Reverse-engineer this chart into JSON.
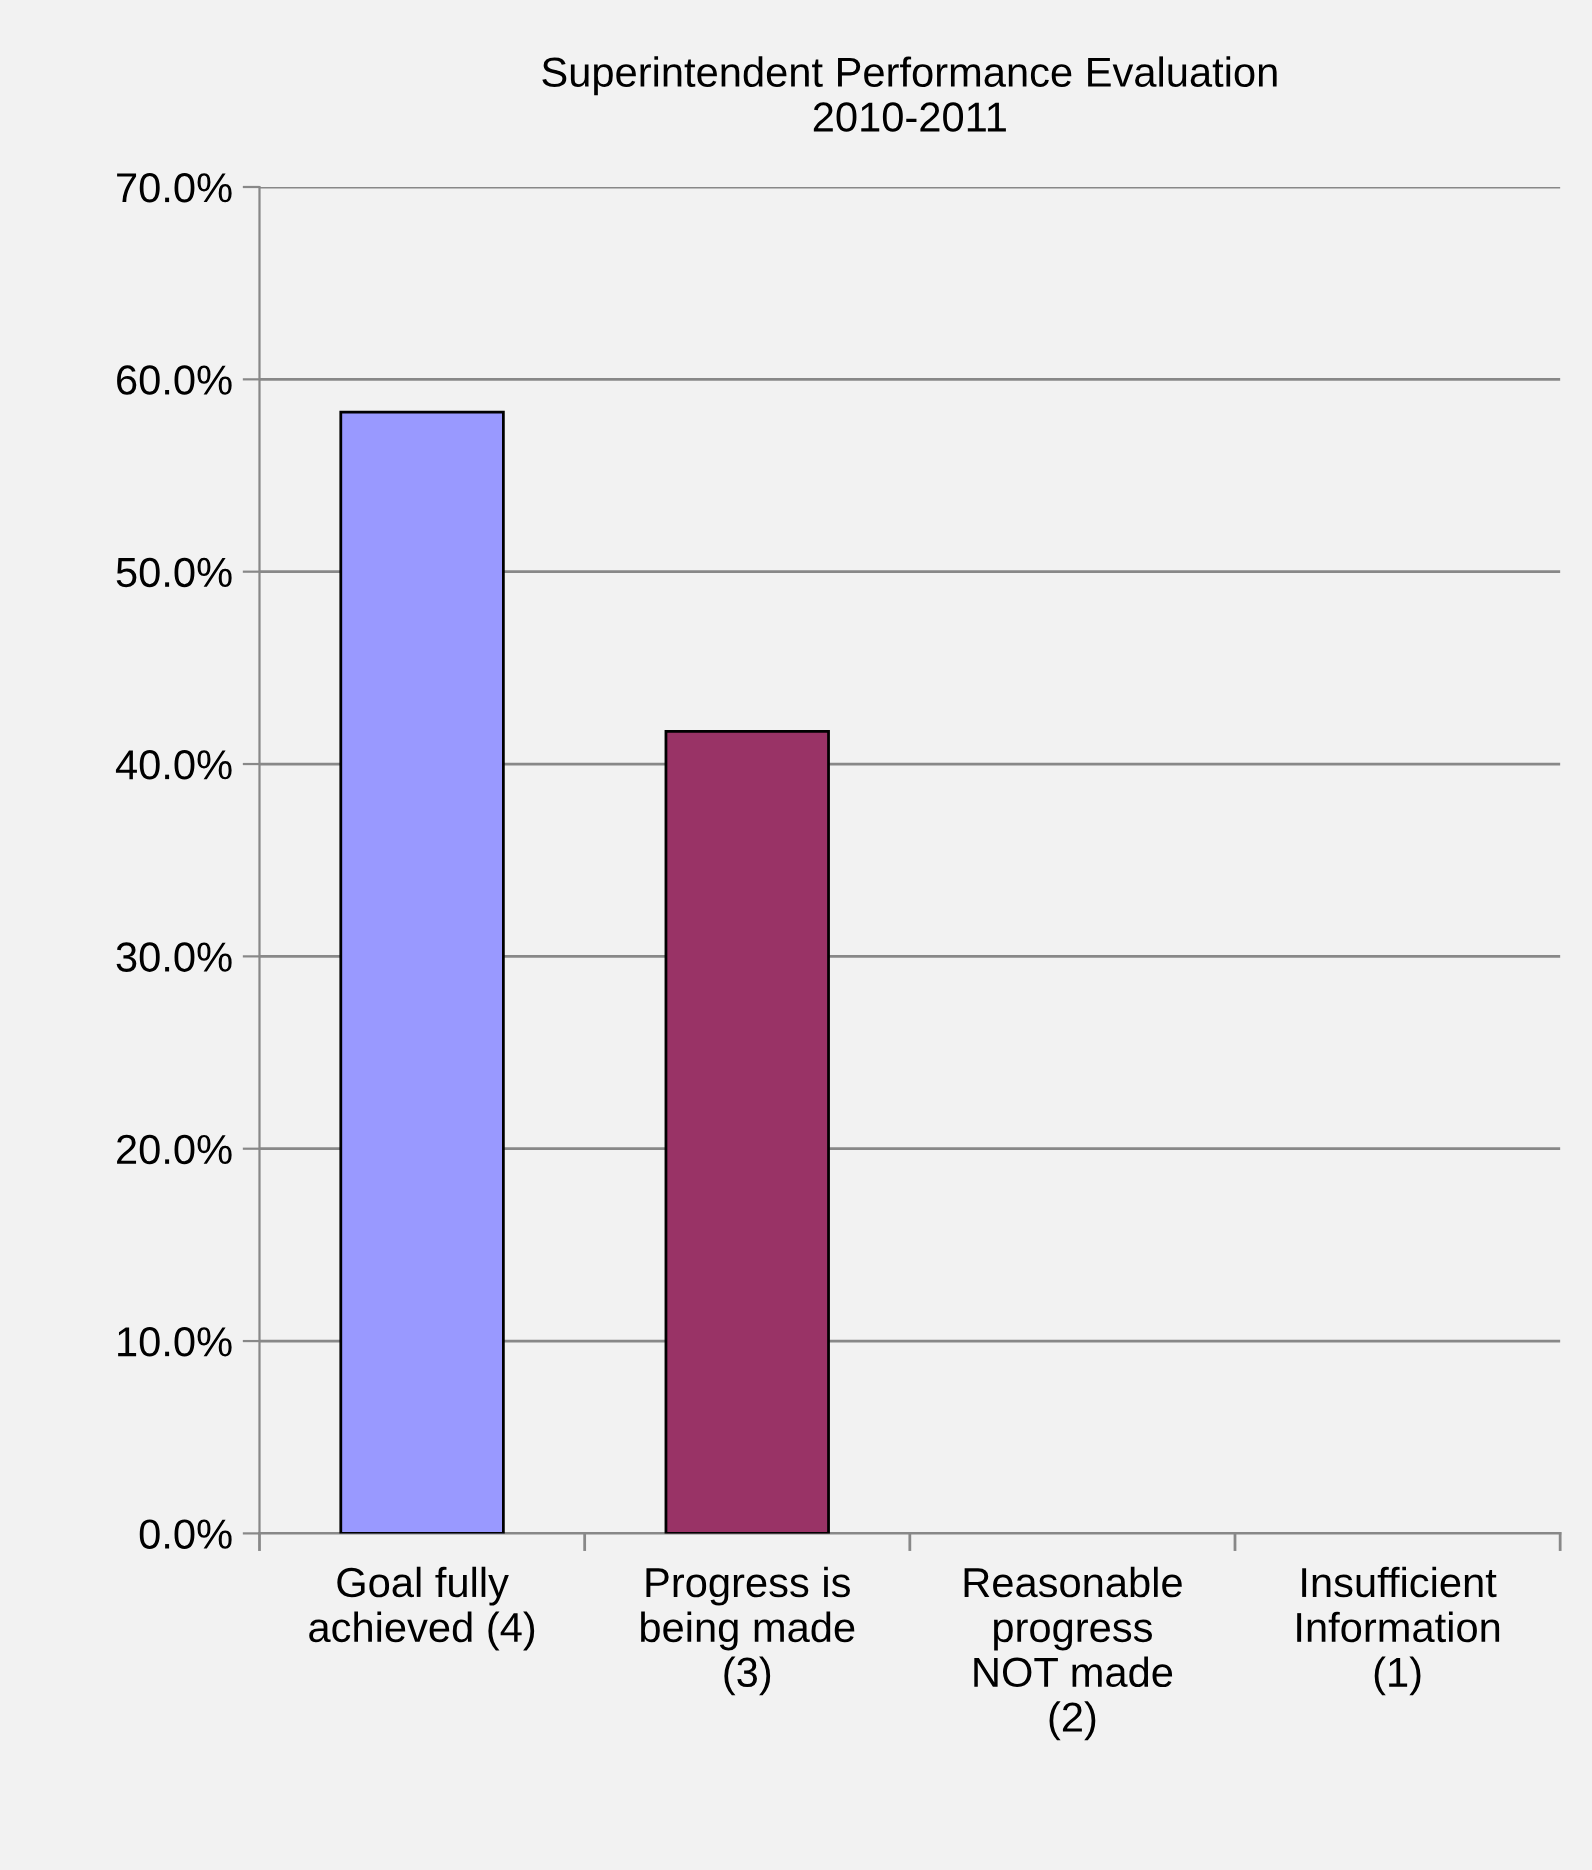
{
  "chart_data": {
    "type": "bar",
    "title": "Superintendent Performance Evaluation\n2010-2011",
    "categories": [
      "Goal fully\nachieved (4)",
      "Progress is\nbeing made\n(3)",
      "Reasonable\nprogress\nNOT made\n(2)",
      "Insufficient\nInformation\n(1)"
    ],
    "values": [
      58.3,
      41.7,
      0,
      0
    ],
    "colors": [
      "#9999ff",
      "#993366",
      "#9999ff",
      "#993366"
    ],
    "ylim": [
      0,
      70
    ],
    "yticks": [
      {
        "value": 0,
        "label": "0.0%"
      },
      {
        "value": 10,
        "label": "10.0%"
      },
      {
        "value": 20,
        "label": "20.0%"
      },
      {
        "value": 30,
        "label": "30.0%"
      },
      {
        "value": 40,
        "label": "40.0%"
      },
      {
        "value": 50,
        "label": "50.0%"
      },
      {
        "value": 60,
        "label": "60.0%"
      },
      {
        "value": 70,
        "label": "70.0%"
      }
    ],
    "grid": "y",
    "legend": false
  }
}
